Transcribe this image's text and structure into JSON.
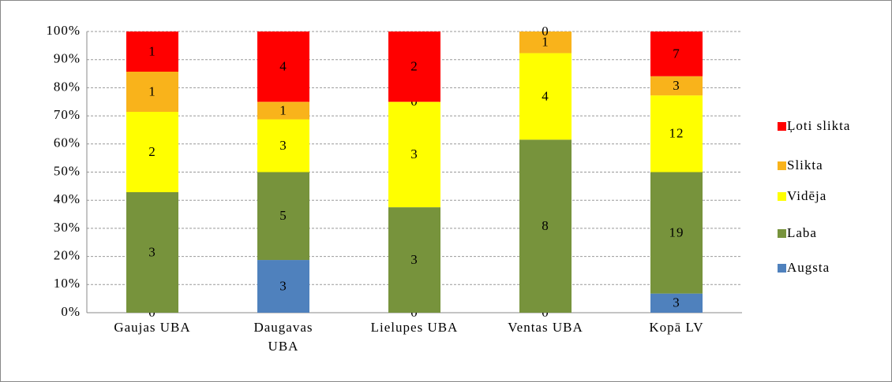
{
  "chart_data": {
    "type": "bar",
    "stacking": "percent",
    "categories": [
      "Gaujas UBA",
      "Daugavas UBA",
      "Lielupes UBA",
      "Ventas UBA",
      "Kopā LV"
    ],
    "series": [
      {
        "name": "Augsta",
        "color": "#4f81bd",
        "values": [
          0,
          3,
          0,
          0,
          3
        ]
      },
      {
        "name": "Laba",
        "color": "#77933c",
        "values": [
          3,
          5,
          3,
          8,
          19
        ]
      },
      {
        "name": "Vidēja",
        "color": "#ffff00",
        "values": [
          2,
          3,
          3,
          4,
          12
        ]
      },
      {
        "name": "Slikta",
        "color": "#f9b31b",
        "values": [
          1,
          1,
          0,
          1,
          3
        ]
      },
      {
        "name": "Ļoti slikta",
        "color": "#ff0000",
        "values": [
          1,
          4,
          2,
          0,
          7
        ]
      }
    ],
    "ylim": [
      0,
      100
    ],
    "yticks": [
      {
        "value": 0,
        "label": "0%"
      },
      {
        "value": 10,
        "label": "10%"
      },
      {
        "value": 20,
        "label": "20%"
      },
      {
        "value": 30,
        "label": "30%"
      },
      {
        "value": 40,
        "label": "40%"
      },
      {
        "value": 50,
        "label": "50%"
      },
      {
        "value": 60,
        "label": "60%"
      },
      {
        "value": 70,
        "label": "70%"
      },
      {
        "value": 80,
        "label": "80%"
      },
      {
        "value": 90,
        "label": "90%"
      },
      {
        "value": 100,
        "label": "100%"
      }
    ],
    "grid": true,
    "legend": "right"
  }
}
